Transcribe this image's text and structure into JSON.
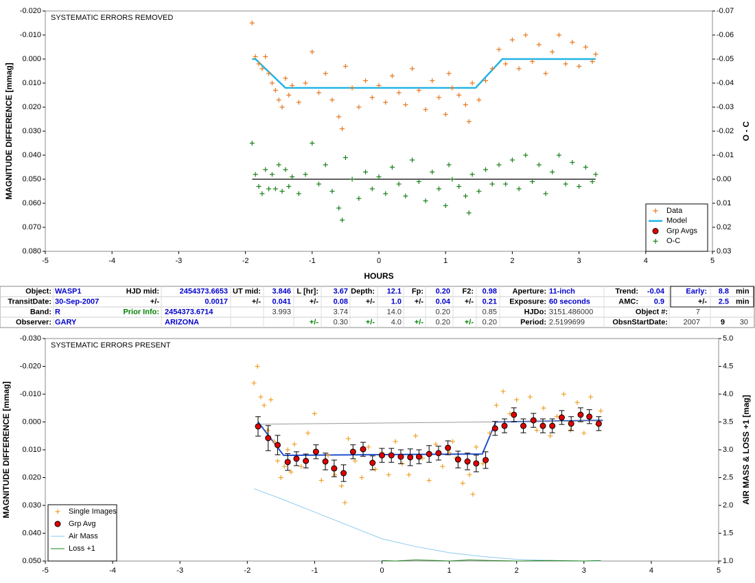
{
  "chart_data": [
    {
      "type": "scatter",
      "annotation": "SYSTEMATIC ERRORS REMOVED",
      "xlabel": "HOURS",
      "ylabel": "MAGNITUDE DIFFERENCE [mmag]",
      "y2label": "O - C",
      "xlim": [
        -5,
        5
      ],
      "xticks": [
        -5,
        -4,
        -3,
        -2,
        -1,
        0,
        1,
        2,
        3,
        4,
        5
      ],
      "ylim": [
        -0.02,
        0.08
      ],
      "yreverse": true,
      "yticks": [
        {
          "value": -0.02,
          "label": "-0.020"
        },
        {
          "value": -0.01,
          "label": "-0.010"
        },
        {
          "value": 0,
          "label": "0.000"
        },
        {
          "value": 0.01,
          "label": "0.010"
        },
        {
          "value": 0.02,
          "label": "0.020"
        },
        {
          "value": 0.03,
          "label": "0.030"
        },
        {
          "value": 0.04,
          "label": "0.040"
        },
        {
          "value": 0.05,
          "label": "0.050"
        },
        {
          "value": 0.06,
          "label": "0.060"
        },
        {
          "value": 0.07,
          "label": "0.070"
        },
        {
          "value": 0.08,
          "label": "0.080"
        }
      ],
      "y2lim": [
        -0.07,
        0.03
      ],
      "y2reverse": true,
      "y2ticks": [
        -0.07,
        -0.06,
        -0.05,
        -0.04,
        -0.03,
        -0.02,
        -0.01,
        {
          "value": 0,
          "label": "0.00"
        },
        0.01,
        0.02,
        0.03
      ],
      "legend": "lower right",
      "series": [
        {
          "name": "Data",
          "mark": "plus",
          "color": "#e8781e",
          "x": [
            -1.9,
            -1.85,
            -1.8,
            -1.75,
            -1.7,
            -1.65,
            -1.6,
            -1.55,
            -1.5,
            -1.45,
            -1.4,
            -1.35,
            -1.3,
            -1.2,
            -1.1,
            -1.0,
            -0.9,
            -0.8,
            -0.7,
            -0.6,
            -0.55,
            -0.5,
            -0.4,
            -0.3,
            -0.2,
            -0.1,
            0,
            0.1,
            0.2,
            0.3,
            0.4,
            0.5,
            0.6,
            0.7,
            0.8,
            0.9,
            1.0,
            1.05,
            1.1,
            1.2,
            1.3,
            1.35,
            1.4,
            1.5,
            1.6,
            1.7,
            1.8,
            1.9,
            2.0,
            2.1,
            2.2,
            2.3,
            2.4,
            2.5,
            2.6,
            2.7,
            2.8,
            2.9,
            3.0,
            3.1,
            3.2,
            3.25
          ],
          "values": [
            -0.015,
            -0.001,
            0.002,
            0.004,
            -0.001,
            0.006,
            0.01,
            0.013,
            0.017,
            0.02,
            0.008,
            0.015,
            0.011,
            0.018,
            0.01,
            -0.003,
            0.014,
            0.006,
            0.017,
            0.024,
            0.029,
            0.003,
            0.012,
            0.02,
            0.009,
            0.016,
            0.011,
            0.018,
            0.007,
            0.014,
            0.019,
            0.004,
            0.013,
            0.021,
            0.009,
            0.016,
            0.023,
            0.006,
            0.012,
            0.015,
            0.019,
            0.026,
            0.01,
            0.017,
            0.009,
            0.004,
            -0.004,
            0.002,
            -0.008,
            0.004,
            -0.01,
            0.001,
            -0.006,
            0.006,
            -0.003,
            -0.01,
            0.002,
            -0.007,
            0.003,
            -0.005,
            0.001,
            -0.002
          ]
        },
        {
          "name": "Model",
          "mark": "line",
          "color": "#22b4e6",
          "width": 2.5,
          "x": [
            -1.9,
            -1.85,
            -1.4,
            1.45,
            1.85,
            3.25
          ],
          "values": [
            0,
            0,
            0.012,
            0.012,
            0,
            0
          ]
        },
        {
          "name": "Grp Avgs",
          "mark": "circle",
          "color": "#e00000",
          "x": [],
          "values": []
        },
        {
          "name": "O-C",
          "mark": "plus",
          "color": "#1a801a",
          "axis": "y2",
          "x": [
            -1.9,
            -1.85,
            -1.8,
            -1.75,
            -1.7,
            -1.65,
            -1.6,
            -1.55,
            -1.5,
            -1.45,
            -1.4,
            -1.35,
            -1.3,
            -1.2,
            -1.1,
            -1.0,
            -0.9,
            -0.8,
            -0.7,
            -0.6,
            -0.55,
            -0.5,
            -0.4,
            -0.3,
            -0.2,
            -0.1,
            0,
            0.1,
            0.2,
            0.3,
            0.4,
            0.5,
            0.6,
            0.7,
            0.8,
            0.9,
            1.0,
            1.05,
            1.1,
            1.2,
            1.3,
            1.35,
            1.4,
            1.5,
            1.6,
            1.7,
            1.8,
            1.9,
            2.0,
            2.1,
            2.2,
            2.3,
            2.4,
            2.5,
            2.6,
            2.7,
            2.8,
            2.9,
            3.0,
            3.1,
            3.2,
            3.25
          ],
          "values": [
            -0.015,
            -0.002,
            0.003,
            0.006,
            -0.004,
            0.004,
            -0.002,
            0.004,
            -0.006,
            0.005,
            -0.004,
            0.003,
            -0.001,
            0.006,
            -0.002,
            -0.015,
            0.002,
            -0.006,
            0.005,
            0.012,
            0.017,
            -0.009,
            0.0,
            0.008,
            -0.003,
            0.004,
            -0.001,
            0.006,
            -0.005,
            0.002,
            0.007,
            -0.008,
            0.001,
            0.009,
            -0.003,
            0.004,
            0.011,
            -0.006,
            0.0,
            0.003,
            0.007,
            0.014,
            -0.002,
            0.005,
            -0.004,
            0.002,
            -0.006,
            0.002,
            -0.008,
            0.004,
            -0.01,
            0.001,
            -0.006,
            0.006,
            -0.003,
            -0.01,
            0.002,
            -0.007,
            0.003,
            -0.005,
            0.001,
            -0.002
          ]
        },
        {
          "mark": "line",
          "color": "#000000",
          "width": 1.2,
          "axis": "y2",
          "x": [
            -1.9,
            3.25
          ],
          "values": [
            0,
            0
          ]
        }
      ]
    },
    {
      "type": "scatter",
      "annotation": "SYSTEMATIC ERRORS PRESENT",
      "ylabel": "MAGNITUDE DIFFERENCE [mmag]",
      "y2label": "AIR MASS & LOSS +1 [mag]",
      "xlim": [
        -5,
        5
      ],
      "xticks": [
        -5,
        -4,
        -3,
        -2,
        -1,
        0,
        1,
        2,
        3,
        4,
        5
      ],
      "ylim": [
        -0.03,
        0.05
      ],
      "yreverse": true,
      "yticks": [
        {
          "value": -0.03,
          "label": "-0.030"
        },
        {
          "value": -0.02,
          "label": "-0.020"
        },
        {
          "value": -0.01,
          "label": "-0.010"
        },
        {
          "value": 0,
          "label": "0.000"
        },
        {
          "value": 0.01,
          "label": "0.010"
        },
        {
          "value": 0.02,
          "label": "0.020"
        },
        {
          "value": 0.03,
          "label": "0.030"
        },
        {
          "value": 0.04,
          "label": "0.040"
        },
        {
          "value": 0.05,
          "label": "0.050"
        }
      ],
      "y2lim": [
        1.0,
        5.0
      ],
      "y2reverse": false,
      "y2ticks": [
        {
          "value": 5,
          "label": "5.0"
        },
        4.5,
        {
          "value": 4,
          "label": "4.0"
        },
        3.5,
        {
          "value": 3,
          "label": "3.0"
        },
        2.5,
        {
          "value": 2,
          "label": "2.0"
        },
        1.5,
        {
          "value": 1,
          "label": "1.0"
        }
      ],
      "legend": "lower left",
      "series": [
        {
          "name": "Single Images",
          "mark": "plus",
          "color": "#f0a028",
          "x": [
            -1.9,
            -1.85,
            -1.8,
            -1.75,
            -1.7,
            -1.65,
            -1.6,
            -1.55,
            -1.5,
            -1.45,
            -1.4,
            -1.35,
            -1.3,
            -1.2,
            -1.1,
            -1.0,
            -0.9,
            -0.8,
            -0.7,
            -0.6,
            -0.55,
            -0.5,
            -0.4,
            -0.3,
            -0.2,
            -0.1,
            0,
            0.1,
            0.2,
            0.3,
            0.4,
            0.5,
            0.6,
            0.7,
            0.8,
            0.9,
            1.0,
            1.05,
            1.1,
            1.2,
            1.3,
            1.35,
            1.4,
            1.5,
            1.6,
            1.7,
            1.8,
            1.9,
            2.0,
            2.1,
            2.2,
            2.3,
            2.4,
            2.5,
            2.6,
            2.7,
            2.8,
            2.9,
            3.0,
            3.1,
            3.2,
            3.25
          ],
          "values": [
            -0.014,
            -0.02,
            -0.009,
            -0.006,
            0.003,
            -0.008,
            0.007,
            0.014,
            0.02,
            0.016,
            0.01,
            0.018,
            0.008,
            0.016,
            0.004,
            -0.003,
            0.021,
            0.012,
            0.019,
            0.023,
            0.029,
            0.006,
            0.014,
            0.02,
            0.009,
            0.017,
            0.011,
            0.019,
            0.007,
            0.015,
            0.019,
            0.005,
            0.013,
            0.021,
            0.008,
            0.016,
            0.011,
            0.007,
            0.013,
            0.022,
            0.019,
            0.026,
            0.009,
            0.015,
            0.004,
            -0.006,
            -0.011,
            -0.003,
            -0.008,
            0.002,
            -0.009,
            0.003,
            -0.005,
            0.005,
            -0.002,
            -0.01,
            0.003,
            -0.007,
            0.004,
            -0.009,
            0.001,
            -0.004
          ]
        },
        {
          "name": "Grp Avg",
          "mark": "circle",
          "color": "#e00000",
          "x": [
            -1.84,
            -1.69,
            -1.55,
            -1.4,
            -1.27,
            -1.13,
            -0.98,
            -0.84,
            -0.71,
            -0.57,
            -0.43,
            -0.28,
            -0.14,
            0.0,
            0.14,
            0.28,
            0.42,
            0.55,
            0.7,
            0.84,
            0.98,
            1.13,
            1.27,
            1.4,
            1.54,
            1.68,
            1.82,
            1.96,
            2.1,
            2.25,
            2.39,
            2.53,
            2.67,
            2.81,
            2.95,
            3.08,
            3.22
          ],
          "values": [
            0.0016,
            0.0058,
            0.0083,
            0.0144,
            0.0132,
            0.014,
            0.0107,
            0.0142,
            0.0167,
            0.0184,
            0.0107,
            0.0098,
            0.0147,
            0.012,
            0.012,
            0.0125,
            0.0127,
            0.0125,
            0.0115,
            0.0112,
            0.0093,
            0.0135,
            0.0142,
            0.0149,
            0.0137,
            0.0023,
            0.0014,
            -0.0026,
            0.0014,
            -0.0006,
            0.0014,
            0.0014,
            -0.0016,
            0.0006,
            -0.0026,
            -0.0019,
            0.0006
          ],
          "errors": [
            0.0035,
            0.0045,
            0.0035,
            0.003,
            0.0025,
            0.0025,
            0.0025,
            0.003,
            0.003,
            0.003,
            0.0025,
            0.0025,
            0.0025,
            0.0025,
            0.0025,
            0.0025,
            0.003,
            0.0025,
            0.003,
            0.0025,
            0.0025,
            0.003,
            0.003,
            0.003,
            0.003,
            0.0025,
            0.0025,
            0.0025,
            0.0025,
            0.0025,
            0.0025,
            0.0025,
            0.0025,
            0.0025,
            0.0025,
            0.0025,
            0.0025
          ]
        },
        {
          "name": "Air Mass",
          "mark": "line",
          "color": "#8ccaf0",
          "width": 1,
          "axis": "y2",
          "x": [
            -1.9,
            -1.5,
            -1.0,
            -0.5,
            0,
            0.5,
            1.0,
            1.5,
            2.0,
            2.5,
            3.0,
            3.25
          ],
          "values": [
            2.3,
            2.12,
            1.88,
            1.64,
            1.4,
            1.26,
            1.15,
            1.08,
            1.03,
            1.01,
            1.0,
            1.0
          ]
        },
        {
          "name": "Loss +1",
          "mark": "line",
          "color": "#1a801a",
          "width": 1,
          "axis": "y2",
          "x": [
            0,
            0.2,
            0.5,
            0.8,
            1.0,
            1.3,
            1.6,
            2.0,
            2.5,
            3.0,
            3.25
          ],
          "values": [
            1.01,
            1.0,
            1.02,
            1.01,
            1.0,
            1.02,
            1.01,
            1.0,
            1.01,
            1.0,
            1.01
          ]
        },
        {
          "mark": "line",
          "color": "#2050d0",
          "width": 2,
          "x": [
            -1.84,
            -1.46,
            1.49,
            1.69,
            3.28
          ],
          "values": [
            0,
            0.012,
            0.0115,
            0,
            -0.0006
          ]
        },
        {
          "mark": "line",
          "color": "#999999",
          "width": 1,
          "x": [
            -1.84,
            3.28
          ],
          "values": [
            0.0008,
            -0.0004
          ]
        }
      ]
    }
  ],
  "table": {
    "rows": [
      [
        "Object:",
        "WASP1",
        "HJD mid:",
        "2454373.6653",
        "UT mid:",
        "3.846",
        "L [hr]:",
        "3.67",
        "Depth:",
        "12.1",
        "Fp:",
        "0.20",
        "F2:",
        "0.98",
        "Aperture:",
        "11-inch",
        "Trend:",
        "-0.04",
        "Early:",
        "8.8",
        "min"
      ],
      [
        "TransitDate:",
        "30-Sep-2007",
        "+/-",
        "0.0017",
        "+/-",
        "0.041",
        "+/-",
        "0.08",
        "+/-",
        "1.0",
        "+/-",
        "0.04",
        "+/-",
        "0.21",
        "Exposure:",
        "60 seconds",
        "AMC:",
        "0.9",
        "+/-",
        "2.5",
        "min"
      ],
      [
        "Band:",
        "R",
        "Prior Info:",
        "2454373.6714",
        null,
        "3.993",
        null,
        "3.74",
        null,
        "14.0",
        null,
        "0.20",
        null,
        "0.85",
        "HJDo:",
        "3151.486000",
        "Object #:",
        "7",
        null,
        null,
        null
      ],
      [
        "Observer:",
        "GARY",
        null,
        "ARIZONA",
        null,
        null,
        "+/-",
        "0.30",
        "+/-",
        "4.0",
        "+/-",
        "0.20",
        "+/-",
        "0.20",
        "Period:",
        "2.5199699",
        "ObsnStartDate:",
        "2007",
        "9",
        "30",
        null
      ]
    ]
  }
}
